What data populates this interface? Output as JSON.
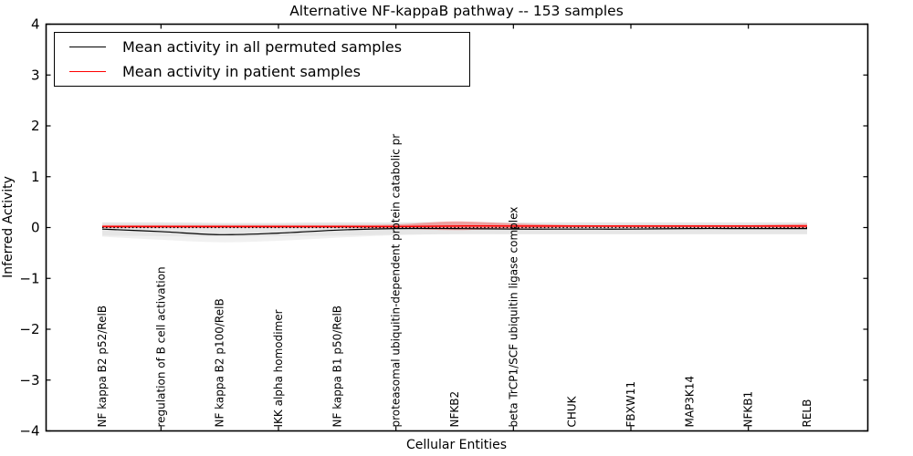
{
  "chart_data": {
    "type": "line",
    "title": "Alternative NF-kappaB pathway -- 153 samples",
    "xlabel": "Cellular Entities",
    "ylabel": "Inferred Activity",
    "ylim": [
      -4,
      4
    ],
    "ytick_values": [
      4,
      3,
      2,
      1,
      0,
      -1,
      -2,
      -3,
      -4
    ],
    "grid": false,
    "zero_line": true,
    "legend_position": "upper left",
    "categories": [
      "NF kappa B2 p52/RelB",
      "regulation of B cell activation",
      "NF kappa B2 p100/RelB",
      "IKK alpha homodimer",
      "NF kappa B1 p50/RelB",
      "proteasomal ubiquitin-dependent protein catabolic pr",
      "NFKB2",
      "beta TrCP1/SCF ubiquitin ligase complex",
      "CHUK",
      "FBXW11",
      "MAP3K14",
      "NFKB1",
      "RELB"
    ],
    "series": [
      {
        "name": "Mean activity in all permuted samples",
        "color": "#000000",
        "values": [
          -0.03,
          -0.08,
          -0.14,
          -0.11,
          -0.05,
          -0.02,
          -0.02,
          -0.03,
          -0.03,
          -0.03,
          -0.02,
          -0.02,
          -0.02
        ]
      },
      {
        "name": "Mean activity in patient samples",
        "color": "#ff0000",
        "values": [
          0.02,
          0.02,
          0.02,
          0.02,
          0.02,
          0.02,
          0.03,
          0.03,
          0.03,
          0.03,
          0.03,
          0.03,
          0.03
        ]
      }
    ],
    "bands": [
      {
        "name": "permuted-range-outer",
        "color": "#f1f1f1",
        "opacity": 1,
        "upper": [
          0.1,
          0.1,
          0.09,
          0.09,
          0.1,
          0.1,
          0.11,
          0.1,
          0.1,
          0.1,
          0.1,
          0.1,
          0.1
        ],
        "lower": [
          -0.18,
          -0.24,
          -0.29,
          -0.26,
          -0.2,
          -0.15,
          -0.13,
          -0.13,
          -0.13,
          -0.13,
          -0.13,
          -0.13,
          -0.13
        ]
      },
      {
        "name": "permuted-range-main",
        "color": "#e6e6e6",
        "opacity": 1,
        "upper": [
          0.1,
          0.1,
          0.09,
          0.09,
          0.1,
          0.1,
          0.11,
          0.1,
          0.1,
          0.1,
          0.1,
          0.1,
          0.1
        ],
        "lower": [
          -0.16,
          -0.17,
          -0.18,
          -0.17,
          -0.16,
          -0.14,
          -0.13,
          -0.13,
          -0.13,
          -0.13,
          -0.13,
          -0.13,
          -0.13
        ]
      },
      {
        "name": "patient-range",
        "color": "#ff0000",
        "opacity": 0.3,
        "upper": [
          0.05,
          0.05,
          0.05,
          0.05,
          0.05,
          0.06,
          0.12,
          0.08,
          0.05,
          0.05,
          0.05,
          0.05,
          0.07
        ],
        "lower": [
          -0.01,
          -0.01,
          -0.01,
          -0.01,
          -0.01,
          -0.02,
          -0.05,
          -0.02,
          0.0,
          0.0,
          0.0,
          0.0,
          -0.01
        ]
      }
    ]
  }
}
